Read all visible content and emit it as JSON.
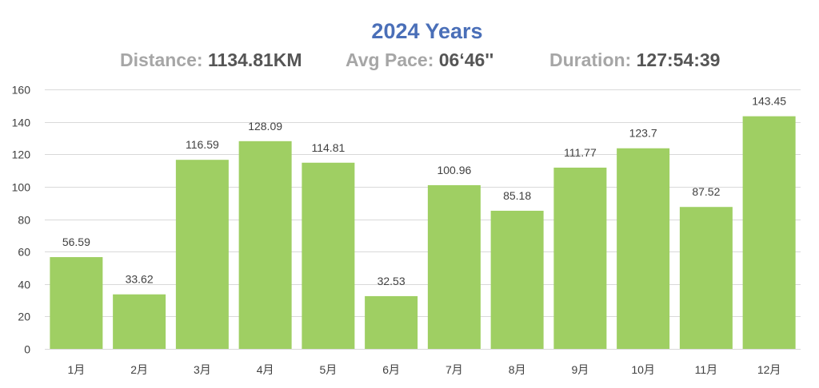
{
  "header": {
    "title": "2024 Years",
    "distance_label": "Distance:",
    "distance_value": "1134.81KM",
    "pace_label": "Avg Pace:",
    "pace_value": "06‘46''",
    "duration_label": "Duration:",
    "duration_value": "127:54:39"
  },
  "colors": {
    "title": "#4a6fb8",
    "bar": "#9fcf63",
    "grid": "#d9d9d9",
    "axis_text": "#404040"
  },
  "chart_data": {
    "type": "bar",
    "title": "2024 Years",
    "categories": [
      "1月",
      "2月",
      "3月",
      "4月",
      "5月",
      "6月",
      "7月",
      "8月",
      "9月",
      "10月",
      "11月",
      "12月"
    ],
    "values": [
      56.59,
      33.62,
      116.59,
      128.09,
      114.81,
      32.53,
      100.96,
      85.18,
      111.77,
      123.7,
      87.52,
      143.45
    ],
    "value_labels": [
      "56.59",
      "33.62",
      "116.59",
      "128.09",
      "114.81",
      "32.53",
      "100.96",
      "85.18",
      "111.77",
      "123.7",
      "87.52",
      "143.45"
    ],
    "ylim": [
      0,
      160
    ],
    "yticks": [
      0,
      20,
      40,
      60,
      80,
      100,
      120,
      140,
      160
    ],
    "xlabel": "",
    "ylabel": "",
    "grid": true,
    "legend": "none"
  }
}
